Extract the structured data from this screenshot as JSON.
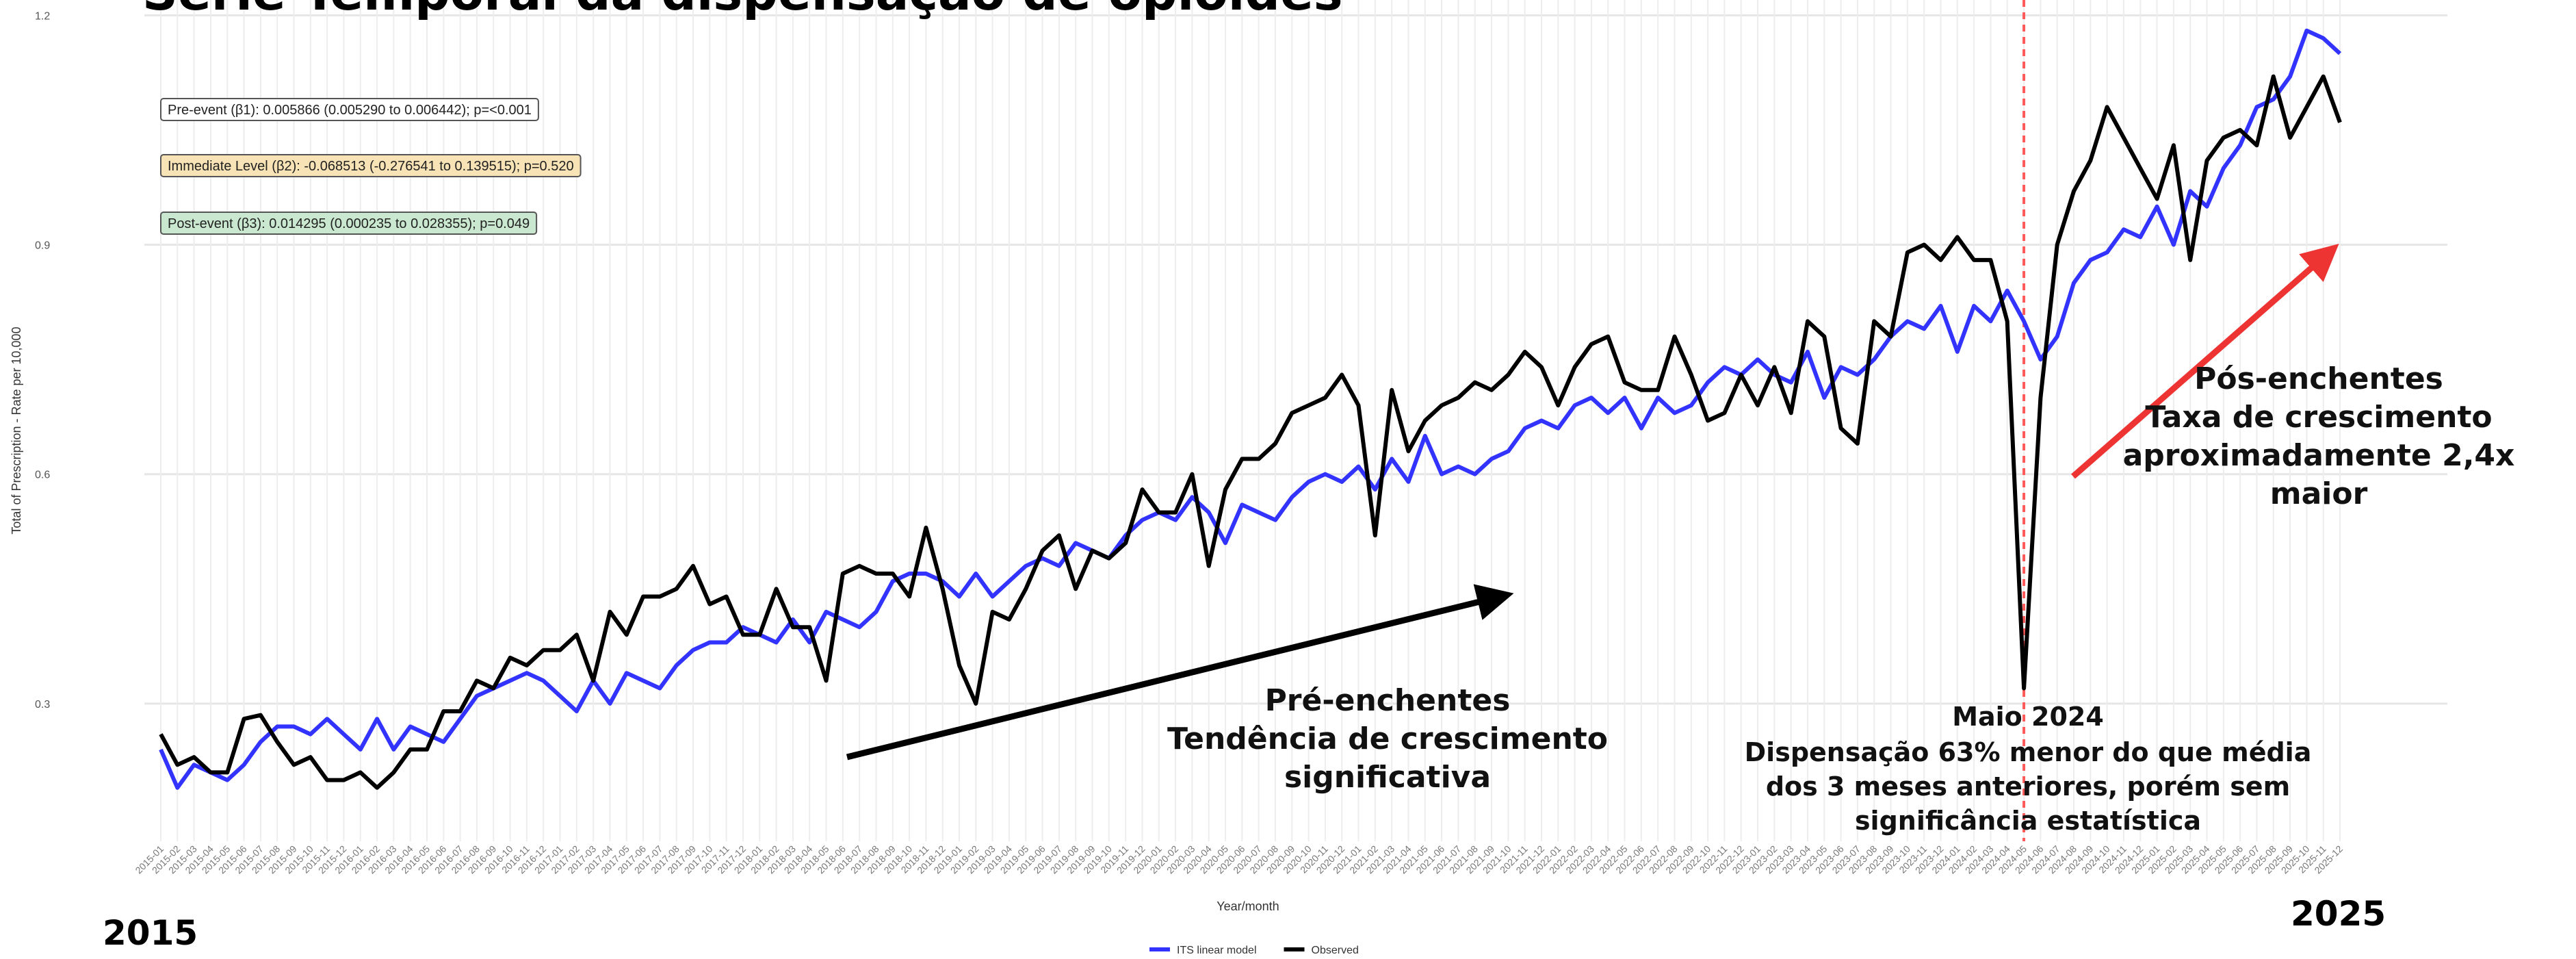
{
  "chart_data": {
    "type": "line",
    "title": "Série Temporal da dispensação de opioides",
    "x_label": "Year/month",
    "y_label": "Total of Prescription - Rate per 10,000",
    "categories": [
      "2015-01",
      "2015-02",
      "2015-03",
      "2015-04",
      "2015-05",
      "2015-06",
      "2015-07",
      "2015-08",
      "2015-09",
      "2015-10",
      "2015-11",
      "2015-12",
      "2016-01",
      "2016-02",
      "2016-03",
      "2016-04",
      "2016-05",
      "2016-06",
      "2016-07",
      "2016-08",
      "2016-09",
      "2016-10",
      "2016-11",
      "2016-12",
      "2017-01",
      "2017-02",
      "2017-03",
      "2017-04",
      "2017-05",
      "2017-06",
      "2017-07",
      "2017-08",
      "2017-09",
      "2017-10",
      "2017-11",
      "2017-12",
      "2018-01",
      "2018-02",
      "2018-03",
      "2018-04",
      "2018-05",
      "2018-06",
      "2018-07",
      "2018-08",
      "2018-09",
      "2018-10",
      "2018-11",
      "2018-12",
      "2019-01",
      "2019-02",
      "2019-03",
      "2019-04",
      "2019-05",
      "2019-06",
      "2019-07",
      "2019-08",
      "2019-09",
      "2019-10",
      "2019-11",
      "2019-12",
      "2020-01",
      "2020-02",
      "2020-03",
      "2020-04",
      "2020-05",
      "2020-06",
      "2020-07",
      "2020-08",
      "2020-09",
      "2020-10",
      "2020-11",
      "2020-12",
      "2021-01",
      "2021-02",
      "2021-03",
      "2021-04",
      "2021-05",
      "2021-06",
      "2021-07",
      "2021-08",
      "2021-09",
      "2021-10",
      "2021-11",
      "2021-12",
      "2022-01",
      "2022-02",
      "2022-03",
      "2022-04",
      "2022-05",
      "2022-06",
      "2022-07",
      "2022-08",
      "2022-09",
      "2022-10",
      "2022-11",
      "2022-12",
      "2023-01",
      "2023-02",
      "2023-03",
      "2023-04",
      "2023-05",
      "2023-06",
      "2023-07",
      "2023-08",
      "2023-09",
      "2023-10",
      "2023-11",
      "2023-12",
      "2024-01",
      "2024-02",
      "2024-03",
      "2024-04",
      "2024-05",
      "2024-06",
      "2024-07",
      "2024-08",
      "2024-09",
      "2024-10",
      "2024-11",
      "2024-12",
      "2025-01",
      "2025-02",
      "2025-03",
      "2025-04",
      "2025-05",
      "2025-06",
      "2025-07",
      "2025-08",
      "2025-09",
      "2025-10",
      "2025-11",
      "2025-12"
    ],
    "series": [
      {
        "name": "ITS linear model",
        "color": "#3333ff",
        "values": [
          0.24,
          0.19,
          0.22,
          0.21,
          0.2,
          0.22,
          0.25,
          0.27,
          0.27,
          0.26,
          0.28,
          0.26,
          0.24,
          0.28,
          0.24,
          0.27,
          0.26,
          0.25,
          0.28,
          0.31,
          0.32,
          0.33,
          0.34,
          0.33,
          0.31,
          0.29,
          0.33,
          0.3,
          0.34,
          0.33,
          0.32,
          0.35,
          0.37,
          0.38,
          0.38,
          0.4,
          0.39,
          0.38,
          0.41,
          0.38,
          0.42,
          0.41,
          0.4,
          0.42,
          0.46,
          0.47,
          0.47,
          0.46,
          0.44,
          0.47,
          0.44,
          0.46,
          0.48,
          0.49,
          0.48,
          0.51,
          0.5,
          0.49,
          0.52,
          0.54,
          0.55,
          0.54,
          0.57,
          0.55,
          0.51,
          0.56,
          0.55,
          0.54,
          0.57,
          0.59,
          0.6,
          0.59,
          0.61,
          0.58,
          0.62,
          0.59,
          0.65,
          0.6,
          0.61,
          0.6,
          0.62,
          0.63,
          0.66,
          0.67,
          0.66,
          0.69,
          0.7,
          0.68,
          0.7,
          0.66,
          0.7,
          0.68,
          0.69,
          0.72,
          0.74,
          0.73,
          0.75,
          0.73,
          0.72,
          0.76,
          0.7,
          0.74,
          0.73,
          0.75,
          0.78,
          0.8,
          0.79,
          0.82,
          0.76,
          0.82,
          0.8,
          0.84,
          0.8,
          0.75,
          0.78,
          0.85,
          0.88,
          0.89,
          0.92,
          0.91,
          0.95,
          0.9,
          0.97,
          0.95,
          1.0,
          1.03,
          1.08,
          1.09,
          1.12,
          1.18,
          1.17,
          1.15
        ]
      },
      {
        "name": "Observed",
        "color": "#000000",
        "values": [
          0.26,
          0.22,
          0.23,
          0.21,
          0.21,
          0.28,
          0.285,
          0.25,
          0.22,
          0.23,
          0.2,
          0.2,
          0.21,
          0.19,
          0.21,
          0.24,
          0.24,
          0.29,
          0.29,
          0.33,
          0.32,
          0.36,
          0.35,
          0.37,
          0.37,
          0.39,
          0.33,
          0.42,
          0.39,
          0.44,
          0.44,
          0.45,
          0.48,
          0.43,
          0.44,
          0.39,
          0.39,
          0.45,
          0.4,
          0.4,
          0.33,
          0.47,
          0.48,
          0.47,
          0.47,
          0.44,
          0.53,
          0.45,
          0.35,
          0.3,
          0.42,
          0.41,
          0.45,
          0.5,
          0.52,
          0.45,
          0.5,
          0.49,
          0.51,
          0.58,
          0.55,
          0.55,
          0.6,
          0.48,
          0.58,
          0.62,
          0.62,
          0.64,
          0.68,
          0.69,
          0.7,
          0.73,
          0.69,
          0.52,
          0.71,
          0.63,
          0.67,
          0.69,
          0.7,
          0.72,
          0.71,
          0.73,
          0.76,
          0.74,
          0.69,
          0.74,
          0.77,
          0.78,
          0.72,
          0.71,
          0.71,
          0.78,
          0.73,
          0.67,
          0.68,
          0.73,
          0.69,
          0.74,
          0.68,
          0.8,
          0.78,
          0.66,
          0.64,
          0.8,
          0.78,
          0.89,
          0.9,
          0.88,
          0.91,
          0.88,
          0.88,
          0.8,
          0.32,
          0.7,
          0.9,
          0.97,
          1.01,
          1.08,
          1.04,
          1.0,
          0.96,
          1.03,
          0.88,
          1.01,
          1.04,
          1.05,
          1.03,
          1.12,
          1.04,
          1.08,
          1.12,
          1.06
        ]
      }
    ],
    "ylim": [
      0.12,
      1.22
    ],
    "yticks": [
      0.3,
      0.6,
      0.9,
      1.2
    ],
    "grid": true,
    "vline": {
      "category": "2024-05",
      "color": "#ff5a5a"
    },
    "stats": [
      {
        "text": "Pre-event (β1): 0.005866 (0.005290 to 0.006442); p=<0.001",
        "color": "#ffffff"
      },
      {
        "text": "Immediate Level (β2): -0.068513 (-0.276541 to 0.139515); p=0.520",
        "color": "#f7e3b5"
      },
      {
        "text": "Post-event (β3): 0.014295 (0.000235 to 0.028355); p=0.049",
        "color": "#c9e8cf"
      }
    ],
    "notes": [
      [
        "Pré-enchentes",
        "Tendência de crescimento",
        "significativa"
      ],
      [
        "Pós-enchentes",
        "Taxa de crescimento",
        "aproximadamente 2,4x",
        "maior"
      ],
      [
        "Maio 2024",
        "Dispensação 63% menor do que média",
        "dos 3 meses anteriores, porém sem",
        "significância estatística"
      ]
    ],
    "period_labels": [
      "2015",
      "2025"
    ]
  }
}
